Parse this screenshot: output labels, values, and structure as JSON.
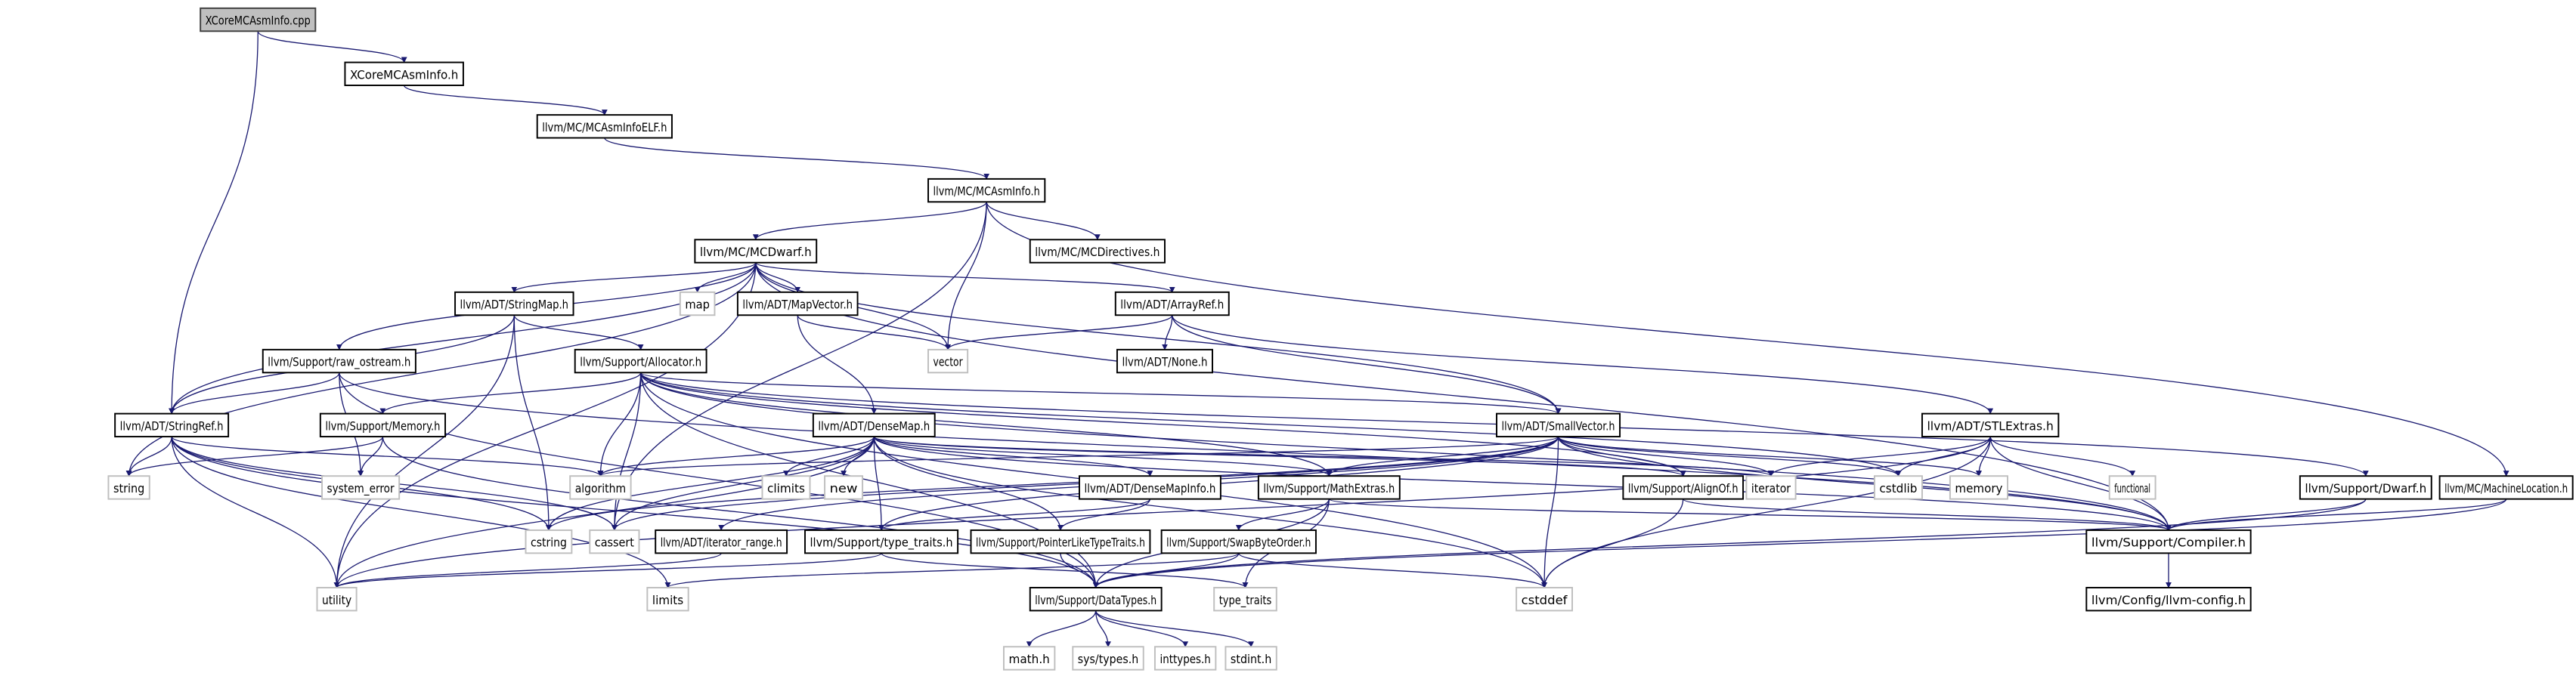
{
  "colors": {
    "edge": "#191970",
    "root_fill": "#bfbfbf",
    "external_border": "#bfbfbf",
    "node_border": "#000000"
  },
  "nodes": [
    {
      "id": "cpp",
      "label": "XCoreMCAsmInfo.cpp",
      "kind": "root"
    },
    {
      "id": "xcoreh",
      "label": "XCoreMCAsmInfo.h",
      "kind": "header"
    },
    {
      "id": "elf",
      "label": "llvm/MC/MCAsmInfoELF.h",
      "kind": "header"
    },
    {
      "id": "mcasminfo",
      "label": "llvm/MC/MCAsmInfo.h",
      "kind": "header"
    },
    {
      "id": "mcdirectives",
      "label": "llvm/MC/MCDirectives.h",
      "kind": "header"
    },
    {
      "id": "mcdwarf",
      "label": "llvm/MC/MCDwarf.h",
      "kind": "header"
    },
    {
      "id": "stringmap",
      "label": "llvm/ADT/StringMap.h",
      "kind": "header"
    },
    {
      "id": "map",
      "label": "map",
      "kind": "external"
    },
    {
      "id": "mapvector",
      "label": "llvm/ADT/MapVector.h",
      "kind": "header"
    },
    {
      "id": "arrayref",
      "label": "llvm/ADT/ArrayRef.h",
      "kind": "header"
    },
    {
      "id": "vector",
      "label": "vector",
      "kind": "external"
    },
    {
      "id": "none",
      "label": "llvm/ADT/None.h",
      "kind": "header"
    },
    {
      "id": "rawostream",
      "label": "llvm/Support/raw_ostream.h",
      "kind": "header"
    },
    {
      "id": "allocator",
      "label": "llvm/Support/Allocator.h",
      "kind": "header"
    },
    {
      "id": "stringref",
      "label": "llvm/ADT/StringRef.h",
      "kind": "header"
    },
    {
      "id": "memoryh",
      "label": "llvm/Support/Memory.h",
      "kind": "header"
    },
    {
      "id": "densemap",
      "label": "llvm/ADT/DenseMap.h",
      "kind": "header"
    },
    {
      "id": "smallvector",
      "label": "llvm/ADT/SmallVector.h",
      "kind": "header"
    },
    {
      "id": "stlextras",
      "label": "llvm/ADT/STLExtras.h",
      "kind": "header"
    },
    {
      "id": "string",
      "label": "string",
      "kind": "external"
    },
    {
      "id": "systemerror",
      "label": "system_error",
      "kind": "external"
    },
    {
      "id": "algorithm",
      "label": "algorithm",
      "kind": "external"
    },
    {
      "id": "climits",
      "label": "climits",
      "kind": "external"
    },
    {
      "id": "new",
      "label": "new",
      "kind": "external"
    },
    {
      "id": "densemapinfo",
      "label": "llvm/ADT/DenseMapInfo.h",
      "kind": "header"
    },
    {
      "id": "mathextras",
      "label": "llvm/Support/MathExtras.h",
      "kind": "header"
    },
    {
      "id": "alignof",
      "label": "llvm/Support/AlignOf.h",
      "kind": "header"
    },
    {
      "id": "iterator",
      "label": "iterator",
      "kind": "external"
    },
    {
      "id": "cstdlib",
      "label": "cstdlib",
      "kind": "external"
    },
    {
      "id": "memory",
      "label": "memory",
      "kind": "external"
    },
    {
      "id": "functional",
      "label": "functional",
      "kind": "external"
    },
    {
      "id": "dwarf",
      "label": "llvm/Support/Dwarf.h",
      "kind": "header"
    },
    {
      "id": "machinelocation",
      "label": "llvm/MC/MachineLocation.h",
      "kind": "header"
    },
    {
      "id": "cstring",
      "label": "cstring",
      "kind": "external"
    },
    {
      "id": "cassert",
      "label": "cassert",
      "kind": "external"
    },
    {
      "id": "iteratorrange",
      "label": "llvm/ADT/iterator_range.h",
      "kind": "header"
    },
    {
      "id": "typetraitsh",
      "label": "llvm/Support/type_traits.h",
      "kind": "header"
    },
    {
      "id": "pointerlike",
      "label": "llvm/Support/PointerLikeTypeTraits.h",
      "kind": "header"
    },
    {
      "id": "swapbyteorder",
      "label": "llvm/Support/SwapByteOrder.h",
      "kind": "header"
    },
    {
      "id": "compiler",
      "label": "llvm/Support/Compiler.h",
      "kind": "header"
    },
    {
      "id": "utility",
      "label": "utility",
      "kind": "external"
    },
    {
      "id": "limits",
      "label": "limits",
      "kind": "external"
    },
    {
      "id": "datatypes",
      "label": "llvm/Support/DataTypes.h",
      "kind": "header"
    },
    {
      "id": "typetraits",
      "label": "type_traits",
      "kind": "external"
    },
    {
      "id": "cstddef",
      "label": "cstddef",
      "kind": "external"
    },
    {
      "id": "llvmconfig",
      "label": "llvm/Config/llvm-config.h",
      "kind": "header"
    },
    {
      "id": "mathh",
      "label": "math.h",
      "kind": "external"
    },
    {
      "id": "systypes",
      "label": "sys/types.h",
      "kind": "external"
    },
    {
      "id": "inttypes",
      "label": "inttypes.h",
      "kind": "external"
    },
    {
      "id": "stdint",
      "label": "stdint.h",
      "kind": "external"
    }
  ],
  "edges": [
    [
      "cpp",
      "xcoreh"
    ],
    [
      "cpp",
      "stringref"
    ],
    [
      "xcoreh",
      "elf"
    ],
    [
      "elf",
      "mcasminfo"
    ],
    [
      "mcasminfo",
      "mcdwarf"
    ],
    [
      "mcasminfo",
      "mcdirectives"
    ],
    [
      "mcasminfo",
      "vector"
    ],
    [
      "mcasminfo",
      "cassert"
    ],
    [
      "mcasminfo",
      "machinelocation"
    ],
    [
      "mcdwarf",
      "stringmap"
    ],
    [
      "mcdwarf",
      "map"
    ],
    [
      "mcdwarf",
      "mapvector"
    ],
    [
      "mcdwarf",
      "arrayref"
    ],
    [
      "mcdwarf",
      "vector"
    ],
    [
      "mcdwarf",
      "rawostream"
    ],
    [
      "mcdwarf",
      "stringref"
    ],
    [
      "mcdwarf",
      "string"
    ],
    [
      "mcdwarf",
      "utility"
    ],
    [
      "mcdwarf",
      "compiler"
    ],
    [
      "mcdwarf",
      "smallvector"
    ],
    [
      "stringmap",
      "stringref"
    ],
    [
      "stringmap",
      "allocator"
    ],
    [
      "stringmap",
      "cstring"
    ],
    [
      "stringmap",
      "utility"
    ],
    [
      "mapvector",
      "vector"
    ],
    [
      "mapvector",
      "densemap"
    ],
    [
      "arrayref",
      "vector"
    ],
    [
      "arrayref",
      "none"
    ],
    [
      "arrayref",
      "smallvector"
    ],
    [
      "arrayref",
      "stlextras"
    ],
    [
      "rawostream",
      "stringref"
    ],
    [
      "rawostream",
      "systemerror"
    ],
    [
      "rawostream",
      "datatypes"
    ],
    [
      "rawostream",
      "compiler"
    ],
    [
      "allocator",
      "memoryh"
    ],
    [
      "allocator",
      "algorithm"
    ],
    [
      "allocator",
      "cassert"
    ],
    [
      "allocator",
      "cstddef"
    ],
    [
      "allocator",
      "cstdlib"
    ],
    [
      "allocator",
      "alignof"
    ],
    [
      "allocator",
      "mathextras"
    ],
    [
      "allocator",
      "smallvector"
    ],
    [
      "allocator",
      "datatypes"
    ],
    [
      "allocator",
      "compiler"
    ],
    [
      "allocator",
      "dwarf"
    ],
    [
      "stringref",
      "string"
    ],
    [
      "stringref",
      "algorithm"
    ],
    [
      "stringref",
      "cstring"
    ],
    [
      "stringref",
      "utility"
    ],
    [
      "stringref",
      "limits"
    ],
    [
      "stringref",
      "cassert"
    ],
    [
      "stringref",
      "datatypes"
    ],
    [
      "memoryh",
      "string"
    ],
    [
      "memoryh",
      "systemerror"
    ],
    [
      "memoryh",
      "datatypes"
    ],
    [
      "densemap",
      "algorithm"
    ],
    [
      "densemap",
      "climits"
    ],
    [
      "densemap",
      "new"
    ],
    [
      "densemap",
      "densemapinfo"
    ],
    [
      "densemap",
      "mathextras"
    ],
    [
      "densemap",
      "alignof"
    ],
    [
      "densemap",
      "pointerlike"
    ],
    [
      "densemap",
      "typetraitsh"
    ],
    [
      "densemap",
      "cassert"
    ],
    [
      "densemap",
      "cstring"
    ],
    [
      "densemap",
      "iterator"
    ],
    [
      "densemap",
      "utility"
    ],
    [
      "densemap",
      "compiler"
    ],
    [
      "densemap",
      "cstddef"
    ],
    [
      "smallvector",
      "alignof"
    ],
    [
      "smallvector",
      "mathextras"
    ],
    [
      "smallvector",
      "iterator"
    ],
    [
      "smallvector",
      "memory"
    ],
    [
      "smallvector",
      "cstdlib"
    ],
    [
      "smallvector",
      "cstring"
    ],
    [
      "smallvector",
      "cassert"
    ],
    [
      "smallvector",
      "algorithm"
    ],
    [
      "smallvector",
      "cstddef"
    ],
    [
      "smallvector",
      "typetraitsh"
    ],
    [
      "smallvector",
      "iteratorrange"
    ],
    [
      "smallvector",
      "compiler"
    ],
    [
      "stlextras",
      "iterator"
    ],
    [
      "stlextras",
      "cstdlib"
    ],
    [
      "stlextras",
      "memory"
    ],
    [
      "stlextras",
      "functional"
    ],
    [
      "stlextras",
      "compiler"
    ],
    [
      "stlextras",
      "cstddef"
    ],
    [
      "stlextras",
      "utility"
    ],
    [
      "densemapinfo",
      "pointerlike"
    ],
    [
      "densemapinfo",
      "typetraitsh"
    ],
    [
      "mathextras",
      "swapbyteorder"
    ],
    [
      "mathextras",
      "typetraits"
    ],
    [
      "mathextras",
      "compiler"
    ],
    [
      "mathextras",
      "datatypes"
    ],
    [
      "alignof",
      "compiler"
    ],
    [
      "alignof",
      "cstddef"
    ],
    [
      "dwarf",
      "compiler"
    ],
    [
      "dwarf",
      "datatypes"
    ],
    [
      "machinelocation",
      "compiler"
    ],
    [
      "machinelocation",
      "datatypes"
    ],
    [
      "compiler",
      "llvmconfig"
    ],
    [
      "typetraitsh",
      "utility"
    ],
    [
      "typetraitsh",
      "typetraits"
    ],
    [
      "pointerlike",
      "datatypes"
    ],
    [
      "swapbyteorder",
      "datatypes"
    ],
    [
      "swapbyteorder",
      "cstddef"
    ],
    [
      "swapbyteorder",
      "limits"
    ],
    [
      "datatypes",
      "mathh"
    ],
    [
      "datatypes",
      "systypes"
    ],
    [
      "datatypes",
      "inttypes"
    ],
    [
      "datatypes",
      "stdint"
    ],
    [
      "iteratorrange",
      "utility"
    ]
  ]
}
